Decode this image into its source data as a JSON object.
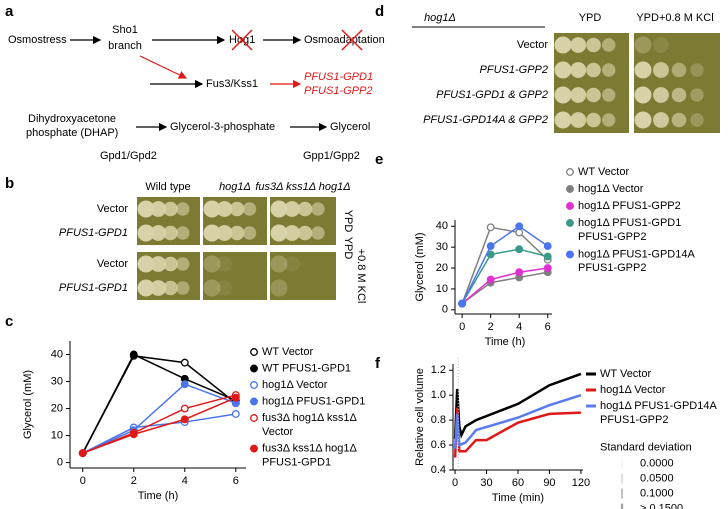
{
  "panels": [
    "a",
    "b",
    "c",
    "d",
    "e",
    "f"
  ],
  "diagram": {
    "osmostress": "Osmostress",
    "sho1": [
      "Sho1",
      "branch"
    ],
    "hog1": "Hog1",
    "osmoadaptation": "Osmoadaptation",
    "fus3": "Fus3/Kss1",
    "gpd1": "PFUS1-GPD1",
    "gpp2": "PFUS1-GPP2",
    "dhap": [
      "Dihydroxyacetone",
      "phosphate (DHAP)"
    ],
    "g3p": "Glycerol-3-phosphate",
    "glycerol": "Glycerol",
    "gpd": "Gpd1/Gpd2",
    "gpp": "Gpp1/Gpp2"
  },
  "spots_b": {
    "columns": [
      "Wild type",
      "hog1Δ",
      "fus3Δ kss1Δ hog1Δ"
    ],
    "rows": [
      "Vector",
      "PFUS1-GPD1",
      "Vector",
      "PFUS1-GPD1"
    ],
    "media": [
      "YPD",
      "+0.8 M KCl"
    ]
  },
  "spots_d": {
    "strain": "hog1Δ",
    "columns": [
      "YPD",
      "YPD+0.8 M KCl"
    ],
    "rows": [
      "Vector",
      "PFUS1-GPP2",
      "PFUS1-GPD1 & GPP2",
      "PFUS1-GPD14A & GPP2"
    ]
  },
  "chart_data": [
    {
      "type": "line",
      "xlabel": "Time (h)",
      "ylabel": "Glycerol (mM)",
      "x": [
        0,
        2,
        4,
        6
      ],
      "xlim": [
        -0.5,
        6.4
      ],
      "xticks": [
        0,
        2,
        4,
        6
      ],
      "ylim": [
        -2,
        45
      ],
      "yticks": [
        0,
        10,
        20,
        30,
        40
      ],
      "series": [
        {
          "name": "WT Vector",
          "color": "#000000",
          "marker": "open",
          "values": [
            3.5,
            39.5,
            37,
            22
          ]
        },
        {
          "name": "WT PFUS1-GPD1",
          "color": "#000000",
          "marker": "filled",
          "values": [
            3.5,
            40,
            31,
            23
          ]
        },
        {
          "name": "hog1Δ Vector",
          "color": "#4a74e8",
          "marker": "open",
          "values": [
            3.5,
            13,
            15,
            18
          ]
        },
        {
          "name": "hog1Δ PFUS1-GPD1",
          "color": "#4a74e8",
          "marker": "filled",
          "values": [
            3.5,
            12,
            29,
            22
          ]
        },
        {
          "name": "fus3Δ hog1Δ kss1Δ\nVector",
          "color": "#e01818",
          "marker": "open",
          "values": [
            3.5,
            11,
            20,
            25
          ]
        },
        {
          "name": "fus3Δ kss1Δ hog1Δ\nPFUS1-GPD1",
          "color": "#e01818",
          "marker": "filled",
          "values": [
            3.5,
            10.5,
            16,
            24
          ]
        }
      ]
    },
    {
      "type": "line",
      "xlabel": "Time (h)",
      "ylabel": "Glycerol (mM)",
      "x": [
        0,
        2,
        4,
        6
      ],
      "xlim": [
        -0.5,
        6.3
      ],
      "xticks": [
        0,
        2,
        4,
        6
      ],
      "ylim": [
        -2,
        43
      ],
      "yticks": [
        0,
        10,
        20,
        30,
        40
      ],
      "series": [
        {
          "name": "WT Vector",
          "color": "#808080",
          "marker": "open",
          "values": [
            3,
            39.5,
            37,
            24
          ]
        },
        {
          "name": "hog1Δ Vector",
          "color": "#808080",
          "marker": "filled",
          "values": [
            3,
            13,
            15.5,
            18
          ]
        },
        {
          "name": "hog1Δ PFUS1-GPP2",
          "color": "#e030d0",
          "marker": "filled",
          "values": [
            3,
            14.5,
            18,
            20
          ]
        },
        {
          "name": "hog1Δ PFUS1-GPD1\nPFUS1-GPP2",
          "color": "#3a9a8a",
          "marker": "filled",
          "values": [
            3,
            26.5,
            29,
            25.5
          ]
        },
        {
          "name": "hog1Δ PFUS1-GPD14A\nPFUS1-GPP2",
          "color": "#4a74f0",
          "marker": "filled",
          "values": [
            3,
            30.5,
            40,
            30.5
          ]
        }
      ]
    },
    {
      "type": "line",
      "xlabel": "Time (min)",
      "ylabel": "Relative cell volume",
      "xlim": [
        -2,
        122
      ],
      "xticks": [
        0,
        30,
        60,
        90,
        120
      ],
      "ylim": [
        0.4,
        1.25
      ],
      "yticks": [
        0.4,
        0.6,
        0.8,
        {
          "value": 1,
          "label": "1.0"
        },
        1.2
      ],
      "series": [
        {
          "name": "WT Vector",
          "color": "#000000",
          "marker": "none",
          "x": [
            0,
            2,
            4,
            6,
            10,
            20,
            60,
            90,
            120
          ],
          "values": [
            0.65,
            1.05,
            0.75,
            0.68,
            0.75,
            0.8,
            0.93,
            1.08,
            1.17
          ]
        },
        {
          "name": "hog1Δ Vector",
          "color": "#e01818",
          "marker": "none",
          "x": [
            0,
            2,
            4,
            10,
            20,
            30,
            60,
            90,
            120
          ],
          "values": [
            0.5,
            0.9,
            0.55,
            0.55,
            0.64,
            0.64,
            0.78,
            0.85,
            0.86
          ]
        },
        {
          "name": "hog1Δ PFUS1-GPD14A\nPFUS1-GPP2",
          "color": "#5a7af0",
          "marker": "none",
          "x": [
            0,
            2,
            4,
            10,
            20,
            60,
            90,
            120
          ],
          "values": [
            0.57,
            0.85,
            0.6,
            0.62,
            0.72,
            0.82,
            0.92,
            1.0
          ]
        }
      ],
      "sd_legend": {
        "title": "Standard deviation",
        "levels": [
          "0.0000",
          "0.0500",
          "0.1000",
          "> 0.1500"
        ]
      }
    }
  ]
}
